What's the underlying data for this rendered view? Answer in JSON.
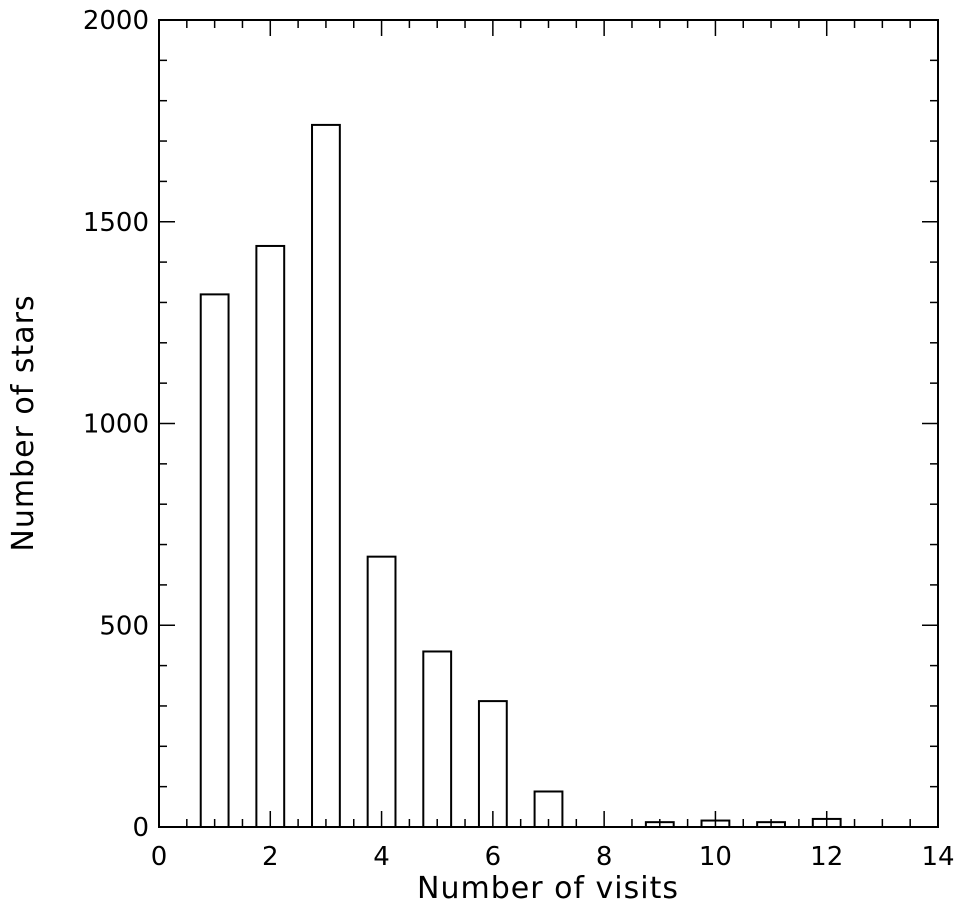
{
  "chart_data": {
    "type": "bar",
    "title": "",
    "xlabel": "Number of visits",
    "ylabel": "Number of stars",
    "xlim": [
      0,
      14
    ],
    "ylim": [
      0,
      2000
    ],
    "x_ticks": [
      "0",
      "2",
      "4",
      "6",
      "8",
      "10",
      "12",
      "14"
    ],
    "y_ticks": [
      "0",
      "500",
      "1000",
      "1500",
      "2000"
    ],
    "bar_width": 0.5,
    "grid": false,
    "legend": "none",
    "bars": [
      {
        "x": 1,
        "value": 1320
      },
      {
        "x": 2,
        "value": 1440
      },
      {
        "x": 3,
        "value": 1740
      },
      {
        "x": 4,
        "value": 670
      },
      {
        "x": 5,
        "value": 435
      },
      {
        "x": 6,
        "value": 312
      },
      {
        "x": 7,
        "value": 88
      },
      {
        "x": 8,
        "value": 0
      },
      {
        "x": 9,
        "value": 12
      },
      {
        "x": 10,
        "value": 16
      },
      {
        "x": 11,
        "value": 12
      },
      {
        "x": 12,
        "value": 20
      },
      {
        "x": 13,
        "value": 0
      }
    ]
  }
}
